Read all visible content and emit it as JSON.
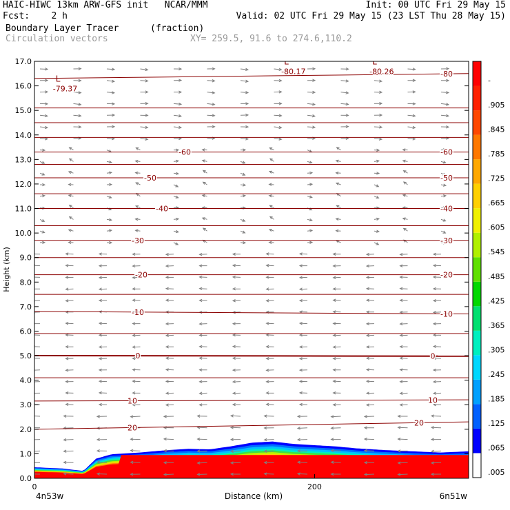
{
  "header": {
    "line1_left": "HAIC-HIWC 13km ARW-GFS init   NCAR/MMM",
    "line1_right": "Init: 00 UTC Fri 29 May 15",
    "line2_left": "Fcst:    2 h",
    "line2_right": "Valid: 02 UTC Fri 29 May 15 (23 LST Thu 28 May 15)",
    "field_name": "Boundary Layer Tracer",
    "field_units": "(fraction)",
    "vectors_label": "Circulation vectors",
    "xy_label": "XY= 259.5, 91.6 to 274.6,110.2"
  },
  "chart_data": {
    "type": "heatmap",
    "ylabel": "Height (km)",
    "xlabel": "Distance (km)",
    "x_ticks": [
      "0",
      "200"
    ],
    "x_start_label": "4n53w",
    "x_end_label": "6n51w",
    "ylim": [
      0,
      17
    ],
    "xlim": [
      0,
      310
    ],
    "y_ticks": [
      "0.0",
      "1.0",
      "2.0",
      "3.0",
      "4.0",
      "5.0",
      "6.0",
      "7.0",
      "8.0",
      "9.0",
      "10.0",
      "11.0",
      "12.0",
      "13.0",
      "14.0",
      "15.0",
      "16.0",
      "17.0"
    ],
    "colorbar": {
      "labels": [
        ".005",
        ".065",
        ".125",
        ".185",
        ".245",
        ".305",
        ".365",
        ".425",
        ".485",
        ".545",
        ".605",
        ".665",
        ".725",
        ".785",
        ".845",
        ".905",
        "-"
      ],
      "colors": [
        "#ffffff",
        "#0000ff",
        "#0060ff",
        "#00a0ff",
        "#00d8ff",
        "#00f0c0",
        "#00e070",
        "#00d800",
        "#60e000",
        "#b0f000",
        "#f0f000",
        "#ffd000",
        "#ffa800",
        "#ff7800",
        "#ff4800",
        "#ff2000",
        "#ff0000"
      ]
    },
    "temperature_contours": [
      {
        "level": 20,
        "x": [
          0,
          310
        ],
        "y": [
          2.0,
          2.3
        ],
        "label": "20"
      },
      {
        "level": 10,
        "x": [
          0,
          310
        ],
        "y": [
          3.15,
          3.2
        ],
        "label": "10"
      },
      {
        "level": 0,
        "x": [
          0,
          310
        ],
        "y": [
          5.0,
          4.98
        ],
        "label": "0"
      },
      {
        "level": -10,
        "x": [
          0,
          310
        ],
        "y": [
          6.8,
          6.7
        ],
        "label": "-10"
      },
      {
        "level": -20,
        "x": [
          0,
          310
        ],
        "y": [
          8.3,
          8.3
        ],
        "label": "-20"
      },
      {
        "level": -30,
        "x": [
          0,
          310
        ],
        "y": [
          9.7,
          9.7
        ],
        "label": "-30"
      },
      {
        "level": -40,
        "x": [
          0,
          310
        ],
        "y": [
          11.0,
          11.0
        ],
        "label": "-40"
      },
      {
        "level": -50,
        "x": [
          0,
          310
        ],
        "y": [
          12.25,
          12.25
        ],
        "label": "-50"
      },
      {
        "level": -60,
        "x": [
          0,
          310
        ],
        "y": [
          13.3,
          13.3
        ],
        "label": "-60"
      },
      {
        "level": -80,
        "x": [
          0,
          310
        ],
        "y": [
          16.3,
          16.5
        ],
        "label": "-80"
      }
    ],
    "extra_contour_y": [
      4.1,
      5.9,
      7.5,
      9.0,
      10.3,
      11.6,
      12.8,
      13.9,
      14.5,
      15.1
    ],
    "minima": [
      {
        "x": 25,
        "y": 16.0,
        "label": "-79.37"
      },
      {
        "x": 188,
        "y": 16.7,
        "label": "-80.17"
      },
      {
        "x": 251,
        "y": 16.7,
        "label": "-80.26"
      }
    ],
    "tracer_top_km": [
      [
        0,
        0.45
      ],
      [
        20,
        0.4
      ],
      [
        35,
        0.3
      ],
      [
        44,
        0.8
      ],
      [
        55,
        0.98
      ],
      [
        75,
        1.05
      ],
      [
        95,
        1.15
      ],
      [
        110,
        1.2
      ],
      [
        125,
        1.18
      ],
      [
        140,
        1.3
      ],
      [
        155,
        1.45
      ],
      [
        170,
        1.5
      ],
      [
        185,
        1.4
      ],
      [
        200,
        1.35
      ],
      [
        215,
        1.3
      ],
      [
        230,
        1.22
      ],
      [
        250,
        1.15
      ],
      [
        270,
        1.1
      ],
      [
        290,
        1.05
      ],
      [
        310,
        1.1
      ]
    ]
  }
}
